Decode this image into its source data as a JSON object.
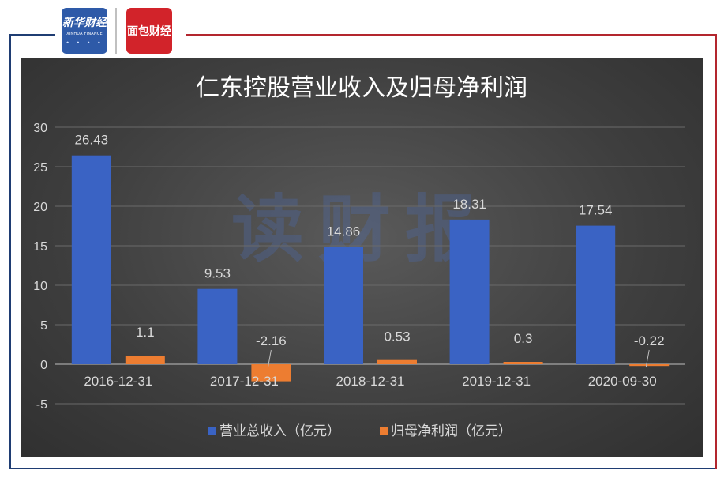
{
  "header": {
    "logo_left_text": "新华财经",
    "logo_left_sub": "XINHUA FINANCE",
    "logo_right_text": "面包财经"
  },
  "watermark": "读财报",
  "colors": {
    "revenue": "#3a63c4",
    "profit": "#ed7d31",
    "text": "#d9d9d9",
    "grid": "#6a6a6a"
  },
  "chart_data": {
    "type": "bar",
    "title": "仁东控股营业收入及归母净利润",
    "categories": [
      "2016-12-31",
      "2017-12-31",
      "2018-12-31",
      "2019-12-31",
      "2020-09-30"
    ],
    "series": [
      {
        "name": "营业总收入（亿元）",
        "values": [
          26.43,
          9.53,
          14.86,
          18.31,
          17.54
        ],
        "labels": [
          "26.43",
          "9.53",
          "14.86",
          "18.31",
          "17.54"
        ]
      },
      {
        "name": "归母净利润（亿元）",
        "values": [
          1.1,
          -2.16,
          0.53,
          0.3,
          -0.22
        ],
        "labels": [
          "1.1",
          "-2.16",
          "0.53",
          "0.3",
          "-0.22"
        ]
      }
    ],
    "ylim": [
      -5,
      30
    ],
    "yticks": [
      -5,
      0,
      5,
      10,
      15,
      20,
      25,
      30
    ],
    "legend_position": "bottom",
    "grid": true
  }
}
